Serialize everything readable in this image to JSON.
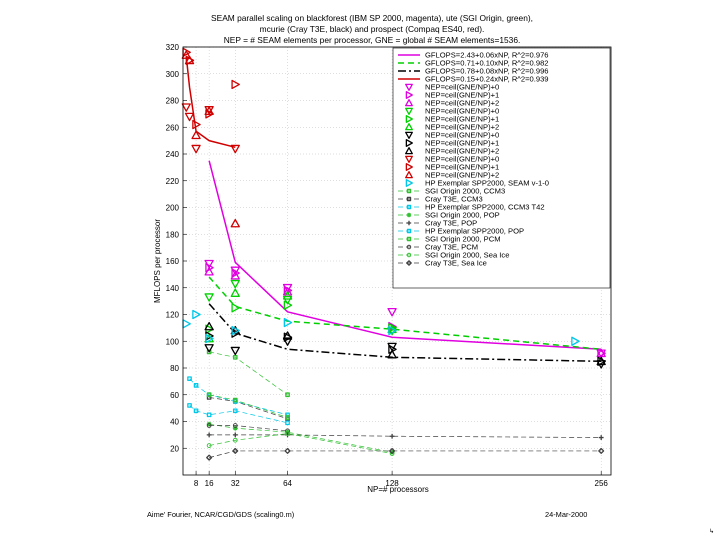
{
  "chart_data": {
    "type": "line",
    "title_lines": [
      "SEAM parallel scaling on blackforest (IBM SP 2000, magenta), ute (SGI Origin, green),",
      "mcurie (Cray T3E, black) and prospect (Compaq ES40, red).",
      "NEP = # SEAM elements per processor, GNE = global # SEAM elements=1536."
    ],
    "xlabel": "NP=# processors",
    "ylabel": "MFLOPS per processor",
    "xlim": [
      0,
      262
    ],
    "ylim": [
      0,
      320
    ],
    "xticks": [
      8,
      16,
      32,
      64,
      128,
      256
    ],
    "yticks": [
      20,
      40,
      60,
      80,
      100,
      120,
      140,
      160,
      180,
      200,
      220,
      240,
      260,
      280,
      300,
      320
    ],
    "grid": true,
    "legend_position": "top-right",
    "fits": [
      {
        "name": "GFLOPS=2.43+0.06xNP,   R^2=0.976",
        "color": "#e000e0",
        "dash": "solid",
        "x": [
          16,
          32,
          64,
          128,
          256
        ],
        "y": [
          235,
          159,
          122,
          103,
          94
        ]
      },
      {
        "name": "GFLOPS=0.71+0.10xNP,   R^2=0.982",
        "color": "#00d000",
        "dash": "6,4",
        "x": [
          16,
          32,
          64,
          128,
          256
        ],
        "y": [
          148,
          126,
          115,
          109,
          94
        ]
      },
      {
        "name": "GFLOPS=0.78+0.08xNP,   R^2=0.996",
        "color": "#000000",
        "dash": "8,3,2,3",
        "x": [
          16,
          32,
          64,
          128,
          256
        ],
        "y": [
          128,
          106,
          94,
          88,
          85
        ]
      },
      {
        "name": "GFLOPS=0.15+0.24xNP,   R^2=0.939",
        "color": "#d00000",
        "dash": "solid",
        "x": [
          2,
          4,
          8,
          16,
          32
        ],
        "y": [
          313,
          290,
          257,
          250,
          245
        ]
      }
    ],
    "marker_series": [
      {
        "name": "NEP=ceil(GNE/NP)+0",
        "color": "#e000e0",
        "marker": "tri-down",
        "x": [
          16,
          32,
          64,
          128,
          256
        ],
        "y": [
          158,
          153,
          140,
          122,
          91
        ]
      },
      {
        "name": "NEP=ceil(GNE/NP)+1",
        "color": "#e000e0",
        "marker": "tri-right",
        "x": [
          16,
          32,
          64,
          128,
          256
        ],
        "y": [
          155,
          151,
          138,
          111,
          91
        ]
      },
      {
        "name": "NEP=ceil(GNE/NP)+2",
        "color": "#e000e0",
        "marker": "tri-up",
        "x": [
          16,
          32,
          64,
          256
        ],
        "y": [
          152,
          149,
          137,
          91
        ]
      },
      {
        "name": "NEP=ceil(GNE/NP)+0",
        "color": "#00d000",
        "marker": "tri-down",
        "x": [
          16,
          32,
          64,
          128
        ],
        "y": [
          133,
          143,
          131,
          108
        ]
      },
      {
        "name": "NEP=ceil(GNE/NP)+1",
        "color": "#00d000",
        "marker": "tri-right",
        "x": [
          16,
          32,
          64,
          128
        ],
        "y": [
          109,
          125,
          127,
          110
        ]
      },
      {
        "name": "NEP=ceil(GNE/NP)+2",
        "color": "#00d000",
        "marker": "tri-up",
        "x": [
          16,
          32,
          64,
          128
        ],
        "y": [
          102,
          136,
          134,
          109
        ]
      },
      {
        "name": "NEP=ceil(GNE/NP)+0",
        "color": "#000000",
        "marker": "tri-down",
        "x": [
          16,
          32,
          64,
          128,
          256
        ],
        "y": [
          95,
          93,
          100,
          96,
          83
        ]
      },
      {
        "name": "NEP=ceil(GNE/NP)+1",
        "color": "#000000",
        "marker": "tri-right",
        "x": [
          16,
          32,
          64,
          128,
          256
        ],
        "y": [
          104,
          106,
          103,
          94,
          85
        ]
      },
      {
        "name": "NEP=ceil(GNE/NP)+2",
        "color": "#000000",
        "marker": "tri-up",
        "x": [
          16,
          32,
          64,
          128,
          256
        ],
        "y": [
          111,
          108,
          104,
          90,
          85
        ]
      },
      {
        "name": "NEP=ceil(GNE/NP)+0",
        "color": "#d00000",
        "marker": "tri-down",
        "x": [
          2,
          4,
          8,
          16,
          32
        ],
        "y": [
          275,
          268,
          244,
          273,
          244
        ]
      },
      {
        "name": "NEP=ceil(GNE/NP)+1",
        "color": "#d00000",
        "marker": "tri-right",
        "x": [
          2,
          4,
          8,
          16,
          32
        ],
        "y": [
          316,
          310,
          262,
          270,
          292
        ]
      },
      {
        "name": "NEP=ceil(GNE/NP)+2",
        "color": "#d00000",
        "marker": "tri-up",
        "x": [
          2,
          4,
          8,
          16,
          32
        ],
        "y": [
          314,
          310,
          254,
          272,
          188
        ]
      },
      {
        "name": "HP Exemplar SPP2000, SEAM v-1-0",
        "color": "#00c8e8",
        "marker": "tri-right",
        "x": [
          2,
          8,
          16,
          32,
          64,
          128,
          240
        ],
        "y": [
          113,
          120,
          102,
          108,
          114,
          108,
          100
        ]
      }
    ],
    "model_series": [
      {
        "name": "SGI Origin 2000, CCM3",
        "color": "#30c030",
        "marker": "square",
        "dash": "5,3",
        "x": [
          16,
          32,
          64
        ],
        "y": [
          92,
          88,
          60
        ]
      },
      {
        "name": "Cray T3E, CCM3",
        "color": "#404040",
        "marker": "square",
        "dash": "5,3",
        "x": [
          16,
          32,
          64
        ],
        "y": [
          58,
          55,
          42
        ]
      },
      {
        "name": "HP Exemplar SPP2000, CCM3 T42",
        "color": "#00c8e8",
        "marker": "square",
        "dash": "5,3",
        "x": [
          4,
          8,
          16,
          32,
          64
        ],
        "y": [
          72,
          67,
          60,
          55,
          45
        ]
      },
      {
        "name": "SGI Origin 2000, POP",
        "color": "#30c030",
        "marker": "star",
        "dash": "5,3",
        "x": [
          16,
          32,
          64,
          128
        ],
        "y": [
          38,
          35,
          32,
          17
        ]
      },
      {
        "name": "Cray T3E, POP",
        "color": "#404040",
        "marker": "plus",
        "dash": "5,3",
        "x": [
          16,
          32,
          64,
          128,
          256
        ],
        "y": [
          30,
          30,
          30,
          29,
          28
        ]
      },
      {
        "name": "HP Exemplar SPP2000, POP",
        "color": "#00c8e8",
        "marker": "square",
        "dash": "5,3",
        "x": [
          4,
          8,
          16,
          32,
          64
        ],
        "y": [
          52,
          48,
          45,
          48,
          39
        ]
      },
      {
        "name": "SGI Origin 2000, PCM",
        "color": "#30c030",
        "marker": "square",
        "dash": "5,3",
        "x": [
          16,
          32,
          64
        ],
        "y": [
          60,
          56,
          43
        ]
      },
      {
        "name": "Cray T3E, PCM",
        "color": "#404040",
        "marker": "circle",
        "dash": "5,3",
        "x": [
          16,
          32,
          64
        ],
        "y": [
          37,
          37,
          33
        ]
      },
      {
        "name": "SGI Origin 2000, Sea Ice",
        "color": "#30c030",
        "marker": "circle",
        "dash": "5,3",
        "x": [
          16,
          32,
          64,
          128
        ],
        "y": [
          22,
          26,
          31,
          16
        ]
      },
      {
        "name": "Cray T3E, Sea Ice",
        "color": "#404040",
        "marker": "diamond",
        "dash": "5,3",
        "x": [
          16,
          32,
          64,
          128,
          256
        ],
        "y": [
          13,
          18,
          18,
          18,
          18
        ]
      }
    ]
  },
  "footer": {
    "author": "Aime' Fourier, NCAR/CGD/GDS (scaling0.m)",
    "date": "24-Mar-2000"
  },
  "corner_mark": "↳"
}
